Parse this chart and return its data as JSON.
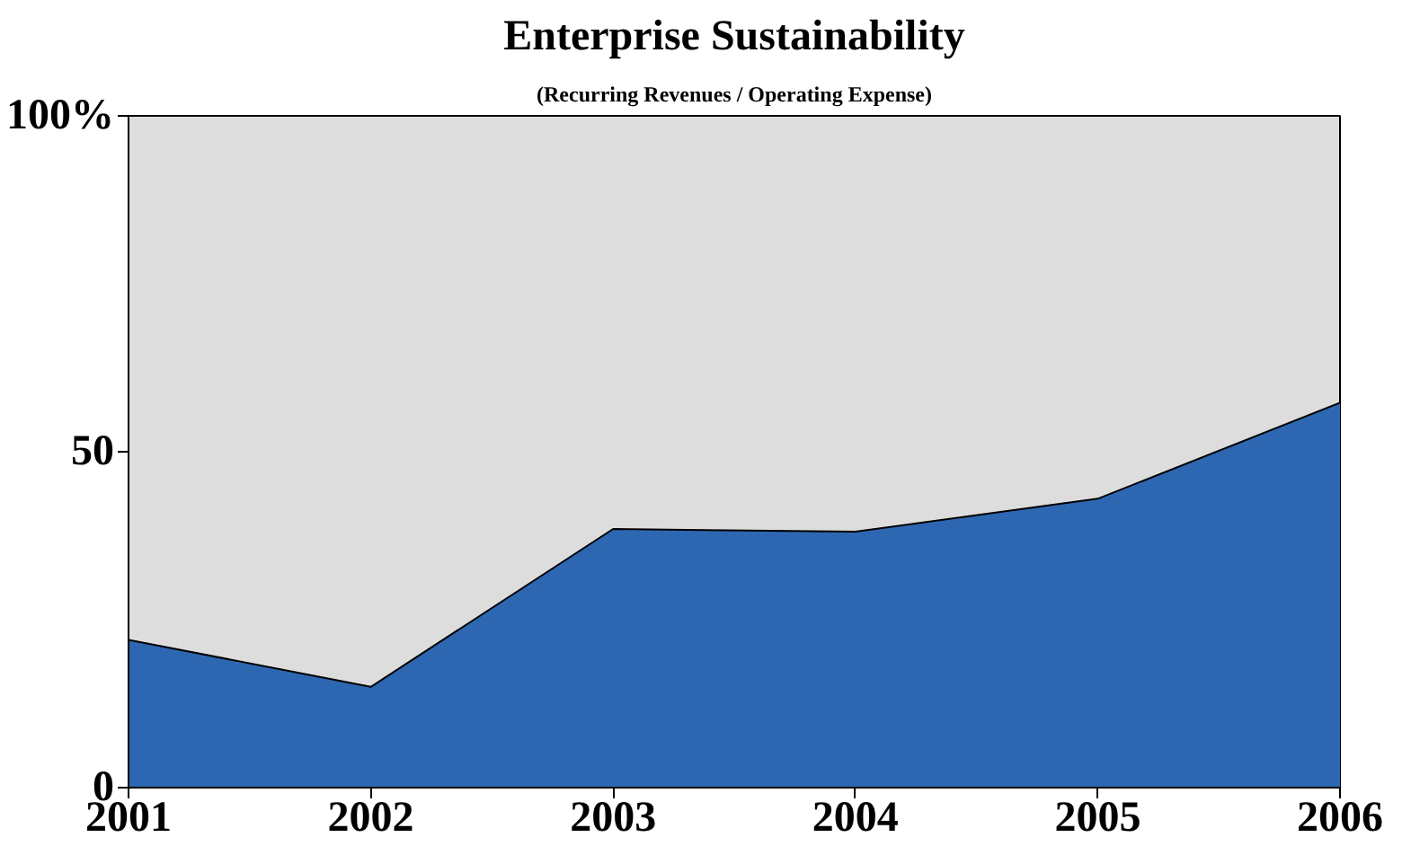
{
  "chart_data": {
    "type": "area",
    "title": "Enterprise Sustainability",
    "subtitle": "(Recurring Revenues / Operating Expense)",
    "x": [
      2001,
      2002,
      2003,
      2004,
      2005,
      2006
    ],
    "series": [
      {
        "color": "#2e67b1",
        "values": [
          22.0,
          15.0,
          38.5,
          38.1,
          43.0,
          57.3
        ]
      }
    ],
    "xlim": [
      2001,
      2006
    ],
    "xticks": [
      2001,
      2002,
      2003,
      2004,
      2005,
      2006
    ],
    "ylim": [
      0,
      100
    ],
    "yticks": [
      0,
      50,
      {
        "value": 100,
        "label": "100%"
      }
    ]
  }
}
